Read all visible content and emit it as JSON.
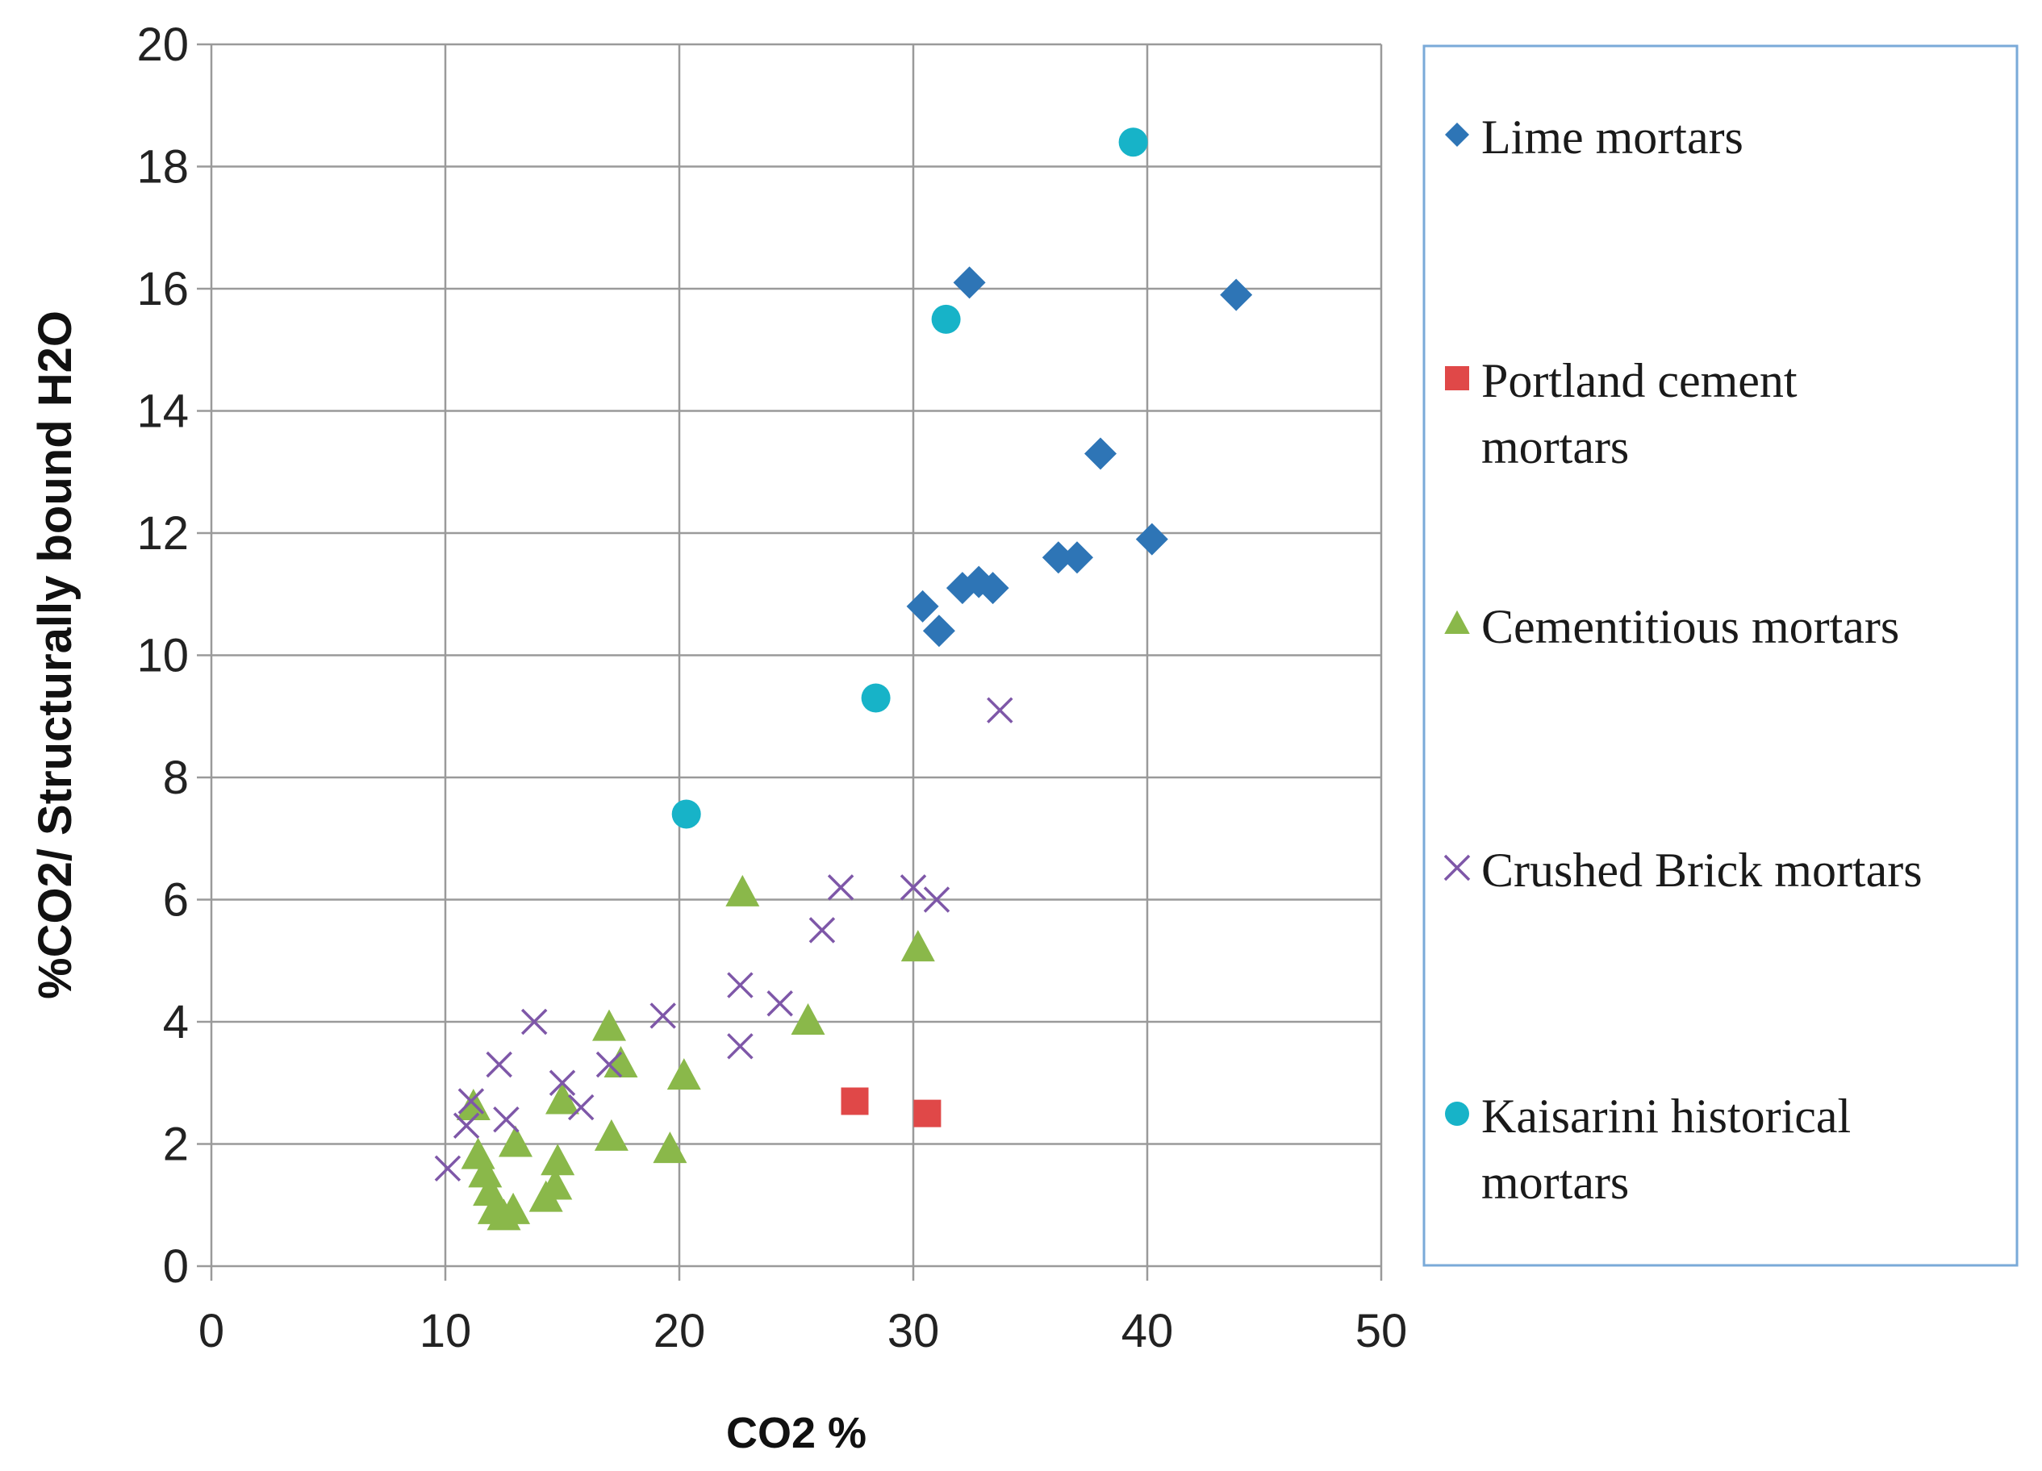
{
  "chart_data": {
    "type": "scatter",
    "xlabel": "CO2 %",
    "ylabel": "%CO2/ Structurally bound H2O",
    "xlim": [
      0,
      50
    ],
    "ylim": [
      0,
      20
    ],
    "xticks": [
      0,
      10,
      20,
      30,
      40,
      50
    ],
    "yticks": [
      0,
      2,
      4,
      6,
      8,
      10,
      12,
      14,
      16,
      18,
      20
    ],
    "grid": true,
    "legend_position": "right",
    "series": [
      {
        "name": "Lime mortars",
        "legend_lines": [
          "Lime mortars"
        ],
        "marker": "diamond",
        "color": "#2e75b6",
        "points": [
          [
            32.4,
            16.1
          ],
          [
            43.8,
            15.9
          ],
          [
            38.0,
            13.3
          ],
          [
            40.2,
            11.9
          ],
          [
            36.2,
            11.6
          ],
          [
            37.0,
            11.6
          ],
          [
            32.1,
            11.1
          ],
          [
            32.8,
            11.2
          ],
          [
            33.4,
            11.1
          ],
          [
            30.4,
            10.8
          ],
          [
            31.1,
            10.4
          ]
        ]
      },
      {
        "name": "Portland cement mortars",
        "legend_lines": [
          "Portland cement",
          "mortars"
        ],
        "marker": "square",
        "color": "#e04848",
        "points": [
          [
            27.5,
            2.7
          ],
          [
            30.6,
            2.5
          ]
        ]
      },
      {
        "name": "Cementitious mortars",
        "legend_lines": [
          "Cementitious mortars"
        ],
        "marker": "triangle",
        "color": "#8ab84a",
        "points": [
          [
            22.7,
            6.1
          ],
          [
            30.2,
            5.2
          ],
          [
            17.0,
            3.9
          ],
          [
            25.5,
            4.0
          ],
          [
            17.5,
            3.3
          ],
          [
            20.2,
            3.1
          ],
          [
            11.2,
            2.6
          ],
          [
            15.0,
            2.7
          ],
          [
            17.1,
            2.1
          ],
          [
            13.0,
            2.0
          ],
          [
            19.6,
            1.9
          ],
          [
            11.4,
            1.8
          ],
          [
            14.8,
            1.7
          ],
          [
            11.7,
            1.5
          ],
          [
            11.9,
            1.2
          ],
          [
            14.7,
            1.3
          ],
          [
            14.3,
            1.1
          ],
          [
            12.1,
            0.9
          ],
          [
            12.5,
            0.8
          ],
          [
            12.9,
            0.9
          ]
        ]
      },
      {
        "name": "Crushed Brick mortars",
        "legend_lines": [
          "Crushed Brick mortars"
        ],
        "marker": "x",
        "color": "#7e57a8",
        "points": [
          [
            33.7,
            9.1
          ],
          [
            26.9,
            6.2
          ],
          [
            30.0,
            6.2
          ],
          [
            31.0,
            6.0
          ],
          [
            26.1,
            5.5
          ],
          [
            22.6,
            4.6
          ],
          [
            24.3,
            4.3
          ],
          [
            19.3,
            4.1
          ],
          [
            13.8,
            4.0
          ],
          [
            22.6,
            3.6
          ],
          [
            12.3,
            3.3
          ],
          [
            17.0,
            3.3
          ],
          [
            15.0,
            3.0
          ],
          [
            11.1,
            2.7
          ],
          [
            15.8,
            2.6
          ],
          [
            12.6,
            2.4
          ],
          [
            10.9,
            2.3
          ],
          [
            10.1,
            1.6
          ]
        ]
      },
      {
        "name": "Kaisarini historical mortars",
        "legend_lines": [
          "Kaisarini historical",
          "mortars"
        ],
        "marker": "circle",
        "color": "#17b3c8",
        "points": [
          [
            39.4,
            18.4
          ],
          [
            31.4,
            15.5
          ],
          [
            28.4,
            9.3
          ],
          [
            20.3,
            7.4
          ]
        ]
      }
    ]
  }
}
